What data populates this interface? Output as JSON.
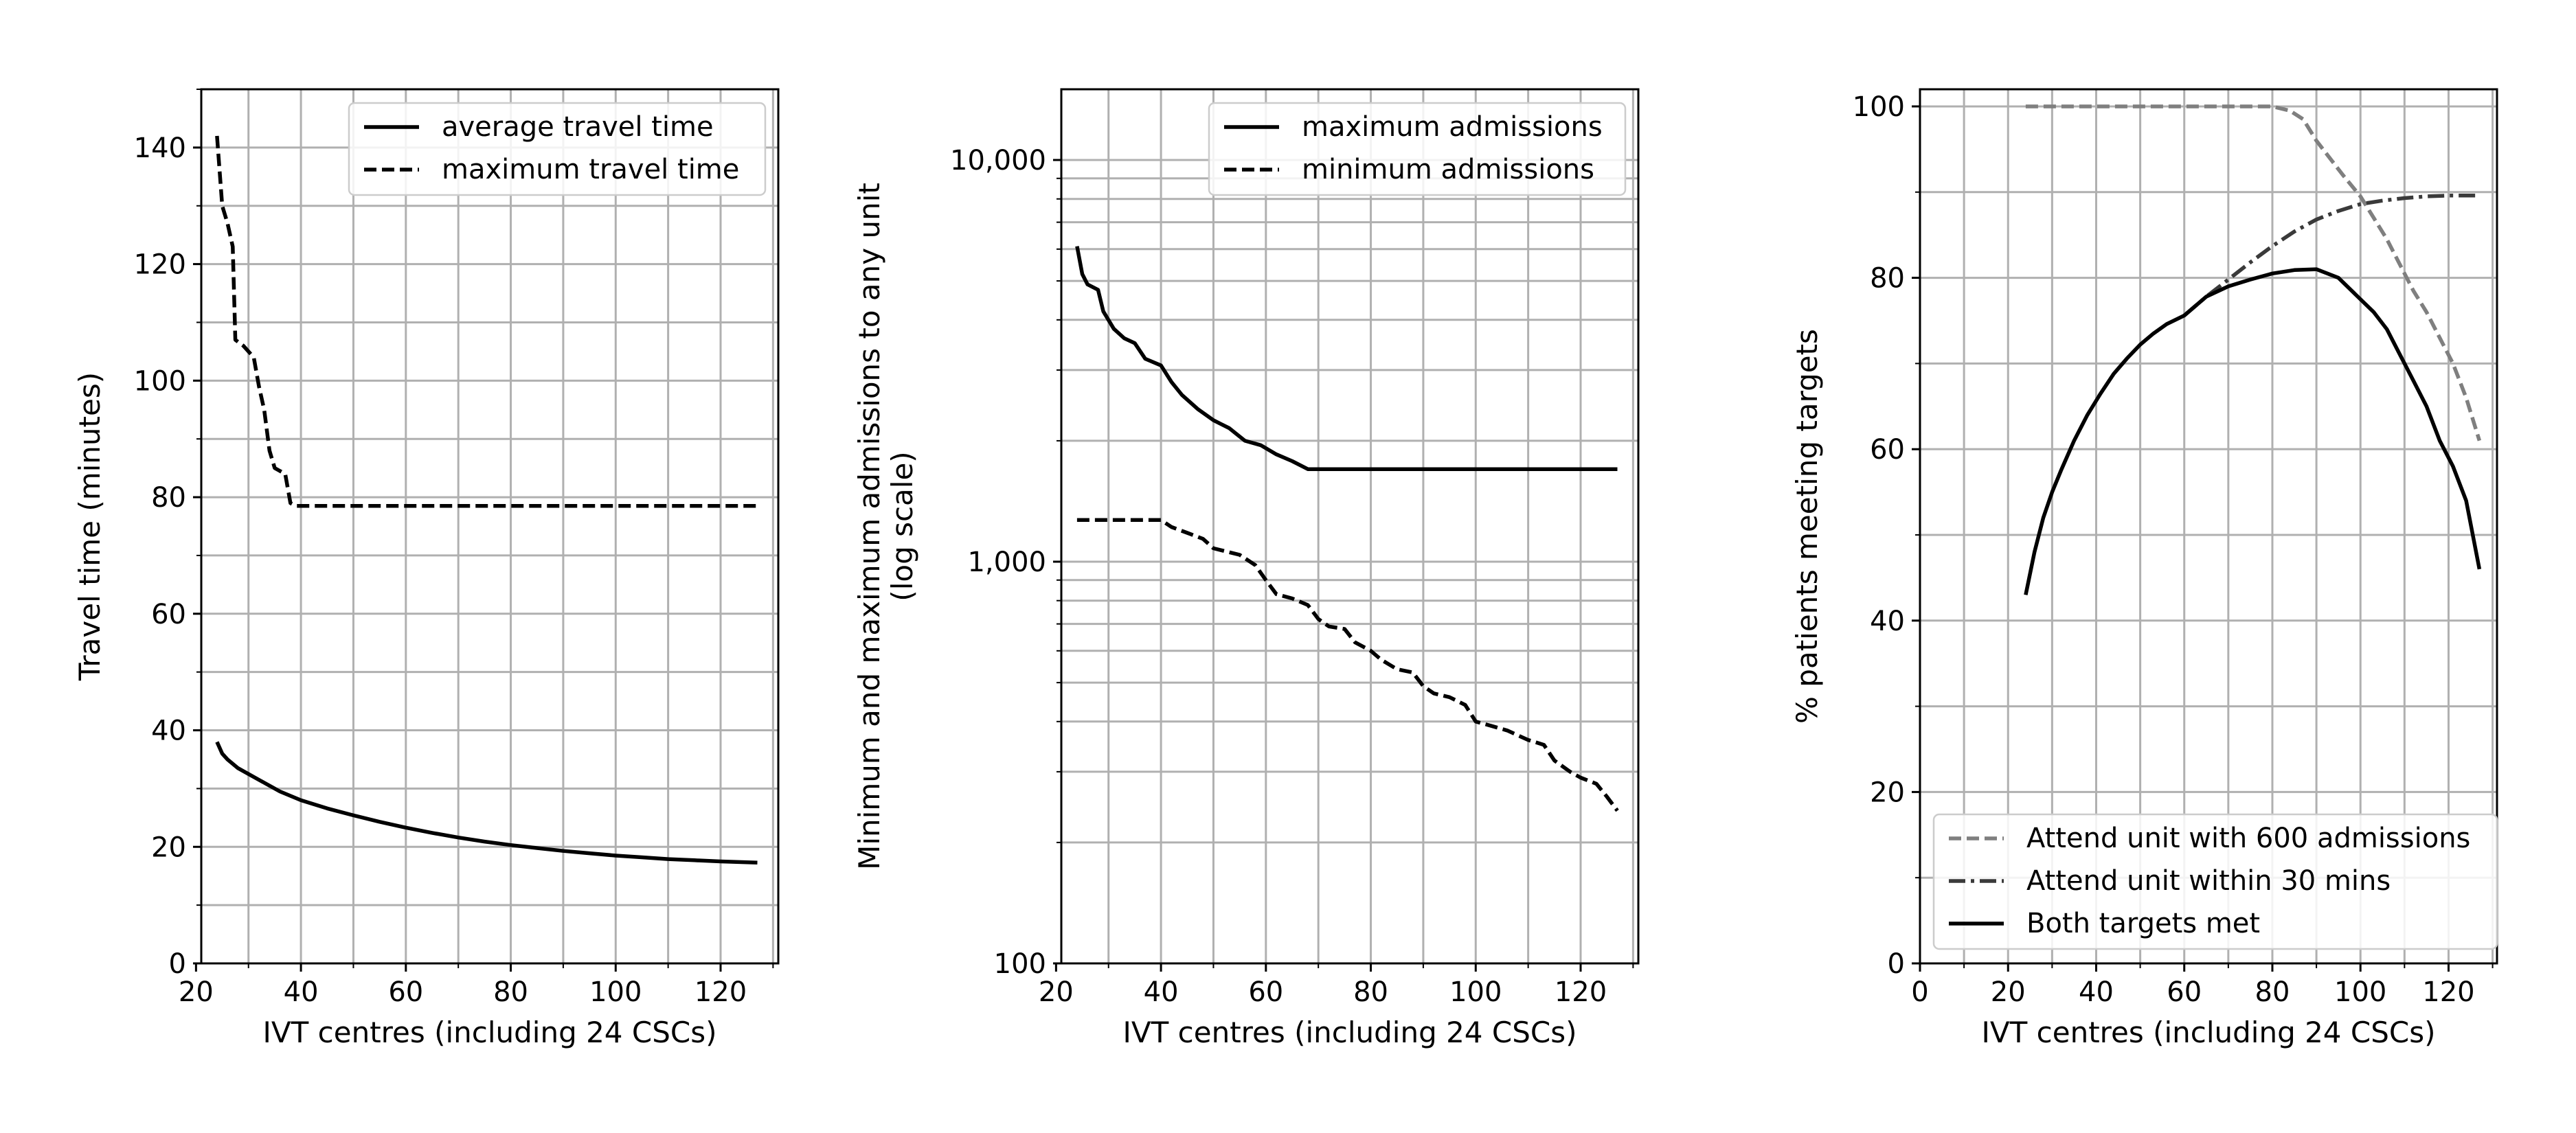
{
  "chart_data": [
    {
      "type": "line",
      "xlabel": "IVT centres (including 24 CSCs)",
      "ylabel": "Travel time (minutes)",
      "xlim": [
        21,
        131
      ],
      "ylim": [
        0,
        150
      ],
      "y_scale": "linear",
      "x_ticks": [
        20,
        40,
        60,
        80,
        100,
        120
      ],
      "x_tick_labels": [
        "20",
        "40",
        "60",
        "80",
        "100",
        "120"
      ],
      "y_ticks": [
        0,
        20,
        40,
        60,
        80,
        100,
        120,
        140
      ],
      "y_tick_labels": [
        "0",
        "20",
        "40",
        "60",
        "80",
        "100",
        "120",
        "140"
      ],
      "grid": true,
      "legend_position": "top-right",
      "series": [
        {
          "name": "average travel time",
          "style": "solid",
          "color": "#000000",
          "points": [
            [
              24,
              38
            ],
            [
              25,
              36
            ],
            [
              26,
              35
            ],
            [
              28,
              33.5
            ],
            [
              30,
              32.5
            ],
            [
              33,
              31
            ],
            [
              36,
              29.5
            ],
            [
              40,
              28
            ],
            [
              45,
              26.6
            ],
            [
              50,
              25.4
            ],
            [
              55,
              24.3
            ],
            [
              60,
              23.3
            ],
            [
              65,
              22.4
            ],
            [
              70,
              21.6
            ],
            [
              75,
              20.9
            ],
            [
              80,
              20.3
            ],
            [
              85,
              19.8
            ],
            [
              90,
              19.3
            ],
            [
              95,
              18.9
            ],
            [
              100,
              18.5
            ],
            [
              105,
              18.2
            ],
            [
              110,
              17.9
            ],
            [
              115,
              17.7
            ],
            [
              120,
              17.5
            ],
            [
              127,
              17.3
            ]
          ]
        },
        {
          "name": "maximum travel time",
          "style": "dashed",
          "color": "#000000",
          "points": [
            [
              24,
              142
            ],
            [
              25,
              130
            ],
            [
              26,
              127
            ],
            [
              27,
              123
            ],
            [
              27.5,
              107
            ],
            [
              29,
              106
            ],
            [
              31,
              104
            ],
            [
              32,
              99
            ],
            [
              33,
              95
            ],
            [
              34,
              88
            ],
            [
              35,
              85
            ],
            [
              36,
              84.5
            ],
            [
              37,
              84
            ],
            [
              38,
              79
            ],
            [
              39,
              78.5
            ],
            [
              127,
              78.5
            ]
          ]
        }
      ]
    },
    {
      "type": "line",
      "xlabel": "IVT centres (including 24 CSCs)",
      "ylabel": "Minimum and maximum admissions to any unit",
      "ylabel_line2": "(log scale)",
      "xlim": [
        21,
        131
      ],
      "ylim": [
        100,
        15000
      ],
      "y_scale": "log",
      "x_ticks": [
        20,
        40,
        60,
        80,
        100,
        120
      ],
      "x_tick_labels": [
        "20",
        "40",
        "60",
        "80",
        "100",
        "120"
      ],
      "y_ticks": [
        100,
        1000,
        10000
      ],
      "y_tick_labels": [
        "100",
        "1,000",
        "10,000"
      ],
      "grid": true,
      "legend_position": "top-right",
      "series": [
        {
          "name": "maximum admissions",
          "style": "solid",
          "color": "#000000",
          "points": [
            [
              24,
              6100
            ],
            [
              25,
              5200
            ],
            [
              26,
              4900
            ],
            [
              28,
              4750
            ],
            [
              29,
              4200
            ],
            [
              31,
              3800
            ],
            [
              33,
              3600
            ],
            [
              35,
              3500
            ],
            [
              37,
              3200
            ],
            [
              40,
              3080
            ],
            [
              42,
              2800
            ],
            [
              44,
              2600
            ],
            [
              47,
              2400
            ],
            [
              50,
              2250
            ],
            [
              53,
              2150
            ],
            [
              56,
              2000
            ],
            [
              59,
              1950
            ],
            [
              62,
              1850
            ],
            [
              65,
              1780
            ],
            [
              68,
              1700
            ],
            [
              127,
              1700
            ]
          ]
        },
        {
          "name": "minimum admissions",
          "style": "dashed",
          "color": "#000000",
          "points": [
            [
              24,
              1270
            ],
            [
              40,
              1270
            ],
            [
              42,
              1220
            ],
            [
              45,
              1180
            ],
            [
              48,
              1140
            ],
            [
              50,
              1080
            ],
            [
              55,
              1040
            ],
            [
              58,
              980
            ],
            [
              60,
              900
            ],
            [
              62,
              830
            ],
            [
              65,
              810
            ],
            [
              68,
              780
            ],
            [
              70,
              720
            ],
            [
              72,
              690
            ],
            [
              75,
              680
            ],
            [
              77,
              630
            ],
            [
              80,
              600
            ],
            [
              82,
              570
            ],
            [
              85,
              540
            ],
            [
              88,
              530
            ],
            [
              90,
              490
            ],
            [
              92,
              470
            ],
            [
              95,
              460
            ],
            [
              98,
              440
            ],
            [
              100,
              400
            ],
            [
              103,
              390
            ],
            [
              106,
              380
            ],
            [
              110,
              360
            ],
            [
              113,
              350
            ],
            [
              115,
              320
            ],
            [
              118,
              300
            ],
            [
              120,
              290
            ],
            [
              123,
              280
            ],
            [
              125,
              260
            ],
            [
              127,
              240
            ]
          ]
        }
      ]
    },
    {
      "type": "line",
      "xlabel": "IVT centres (including 24 CSCs)",
      "ylabel": "% patients meeting targets",
      "xlim": [
        0,
        131
      ],
      "ylim": [
        0,
        102
      ],
      "y_scale": "linear",
      "x_ticks": [
        0,
        20,
        40,
        60,
        80,
        100,
        120
      ],
      "x_tick_labels": [
        "0",
        "20",
        "40",
        "60",
        "80",
        "100",
        "120"
      ],
      "y_ticks": [
        0,
        20,
        40,
        60,
        80,
        100
      ],
      "y_tick_labels": [
        "0",
        "20",
        "40",
        "60",
        "80",
        "100"
      ],
      "grid": true,
      "legend_position": "bottom-right",
      "series": [
        {
          "name": "Attend unit with 600 admissions",
          "style": "dashed",
          "color": "#7f7f7f",
          "points": [
            [
              24,
              100
            ],
            [
              80,
              100
            ],
            [
              84,
              99.5
            ],
            [
              87,
              98.5
            ],
            [
              90,
              96
            ],
            [
              93,
              94
            ],
            [
              96,
              92
            ],
            [
              100,
              89.5
            ],
            [
              103,
              87
            ],
            [
              106,
              84.5
            ],
            [
              109,
              81.5
            ],
            [
              112,
              78.5
            ],
            [
              115,
              76
            ],
            [
              118,
              73
            ],
            [
              121,
              70
            ],
            [
              124,
              66
            ],
            [
              127,
              61
            ]
          ]
        },
        {
          "name": "Attend unit within 30 mins",
          "style": "dashdot",
          "color": "#3a3a3a",
          "points": [
            [
              60,
              75.6
            ],
            [
              65,
              77.8
            ],
            [
              70,
              79.8
            ],
            [
              75,
              81.8
            ],
            [
              80,
              83.7
            ],
            [
              85,
              85.4
            ],
            [
              90,
              86.8
            ],
            [
              95,
              87.8
            ],
            [
              100,
              88.6
            ],
            [
              105,
              89
            ],
            [
              110,
              89.3
            ],
            [
              115,
              89.5
            ],
            [
              120,
              89.6
            ],
            [
              127,
              89.6
            ]
          ]
        },
        {
          "name": "Both targets met",
          "style": "solid",
          "color": "#000000",
          "points": [
            [
              24,
              43
            ],
            [
              26,
              48
            ],
            [
              28,
              52
            ],
            [
              30,
              55
            ],
            [
              32,
              57.5
            ],
            [
              35,
              61
            ],
            [
              38,
              64
            ],
            [
              41,
              66.5
            ],
            [
              44,
              68.8
            ],
            [
              47,
              70.6
            ],
            [
              50,
              72.2
            ],
            [
              53,
              73.5
            ],
            [
              56,
              74.6
            ],
            [
              60,
              75.6
            ],
            [
              65,
              77.8
            ],
            [
              70,
              79
            ],
            [
              75,
              79.8
            ],
            [
              80,
              80.5
            ],
            [
              85,
              80.9
            ],
            [
              90,
              81
            ],
            [
              95,
              80
            ],
            [
              100,
              77.5
            ],
            [
              103,
              76
            ],
            [
              106,
              74
            ],
            [
              109,
              71
            ],
            [
              112,
              68
            ],
            [
              115,
              65
            ],
            [
              118,
              61
            ],
            [
              121,
              58
            ],
            [
              124,
              54
            ],
            [
              127,
              46
            ]
          ]
        }
      ]
    }
  ]
}
